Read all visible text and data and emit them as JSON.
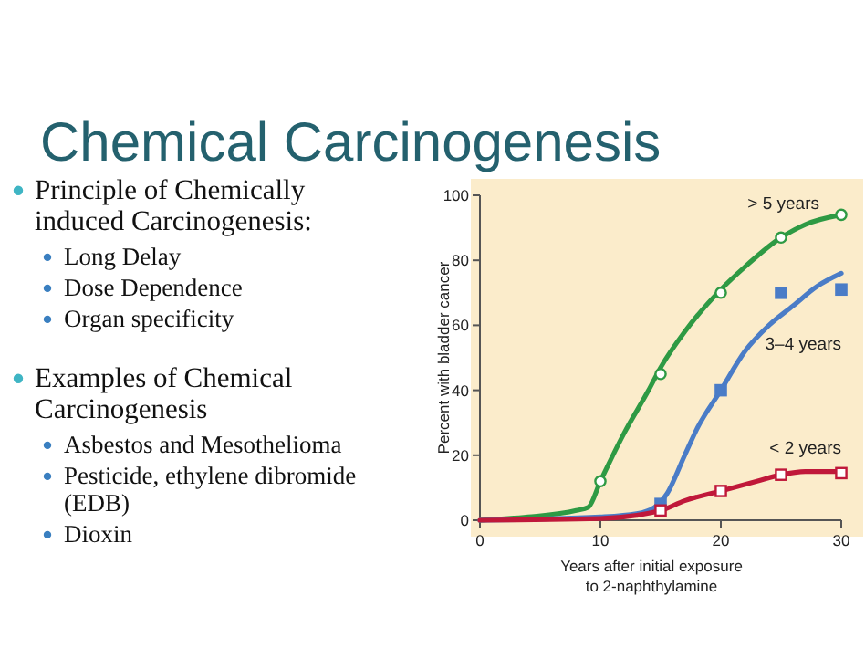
{
  "chart_data": {
    "type": "line",
    "title": "Chemical Carcinogenesis",
    "annotations": [
      "Principle of Chemically induced Carcinogenesis:",
      "Long Delay",
      "Dose Dependence",
      "Organ specificity",
      "Examples of Chemical Carcinogenesis",
      "Asbestos and Mesothelioma",
      "Pesticide, ethylene dibromide (EDB)",
      "Dioxin"
    ],
    "xlabel": "Years after initial exposure to 2-naphthylamine",
    "ylabel": "Percent with bladder cancer",
    "xlim": [
      0,
      30
    ],
    "xticks": [
      0,
      10,
      20,
      30
    ],
    "ylim": [
      0,
      100
    ],
    "yticks": [
      0,
      20,
      40,
      60,
      80,
      100
    ],
    "grid": false,
    "series": [
      {
        "name": "> 5 years",
        "type": "line",
        "color": "#2e9a44",
        "marker": "none",
        "x": [
          0,
          4,
          8,
          9,
          10,
          12,
          14,
          15,
          17,
          20,
          22,
          25,
          27,
          30
        ],
        "values": [
          0,
          1,
          3,
          4,
          12,
          27,
          40,
          47,
          58,
          71,
          78,
          87,
          91,
          94
        ]
      },
      {
        "name": "3–4 years",
        "type": "line",
        "color": "#4a7cc7",
        "marker": "none",
        "x": [
          0,
          10,
          13,
          14.5,
          15.5,
          17,
          18,
          20,
          22,
          24,
          26,
          28,
          30
        ],
        "values": [
          0,
          1,
          2,
          4,
          8,
          20,
          28,
          40,
          52,
          60,
          66,
          72,
          76
        ]
      },
      {
        "name": "< 2 years",
        "type": "line",
        "color": "#c0183a",
        "marker": "none",
        "x": [
          0,
          10,
          13,
          15,
          17,
          20,
          23,
          25,
          27,
          30
        ],
        "values": [
          0,
          0.5,
          1.5,
          3,
          6,
          9,
          12,
          14,
          15,
          15
        ]
      },
      {
        "type": "scatter",
        "color": "#2e9a44",
        "marker": "circle",
        "x": [
          10,
          15,
          20,
          25,
          30
        ],
        "values": [
          12,
          45,
          70,
          87,
          94
        ]
      },
      {
        "type": "scatter",
        "color": "#4a7cc7",
        "marker": "square",
        "x": [
          15,
          20,
          25,
          30
        ],
        "values": [
          5,
          40,
          70,
          71
        ]
      },
      {
        "type": "scatter",
        "color": "#c0183a",
        "marker": "square",
        "x": [
          15,
          20,
          25,
          30
        ],
        "values": [
          3,
          9,
          14,
          14.5
        ]
      }
    ]
  }
}
